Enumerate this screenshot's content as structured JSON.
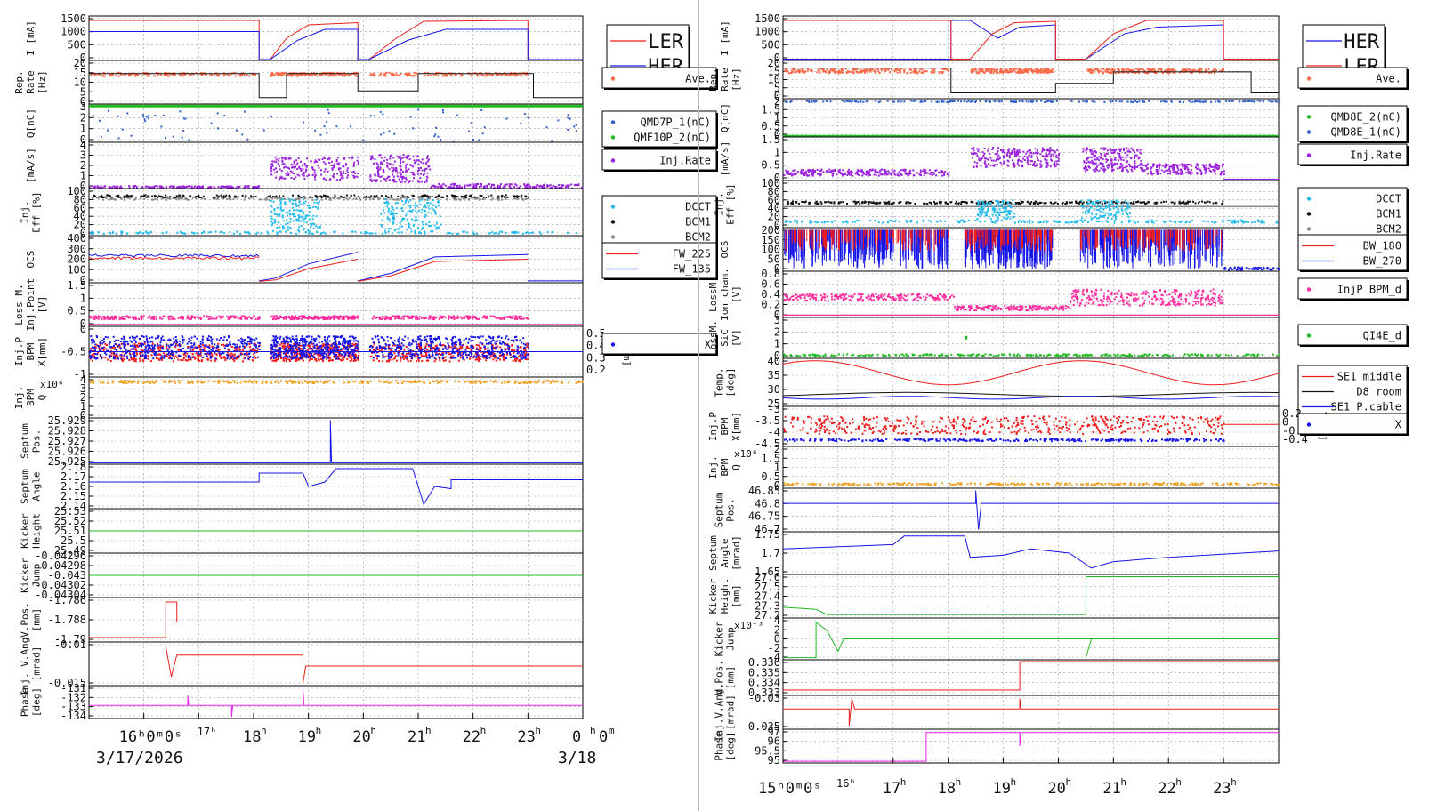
{
  "colors": {
    "red": "#ee1c1c",
    "blue": "#1515e8",
    "green": "#22bb22",
    "purple": "#9a22dd",
    "cyan": "#22bbee",
    "black": "#111111",
    "gray": "#8a8a8a",
    "pink": "#ff2d9e",
    "orange": "#f0a020",
    "magenta": "#ee22ee",
    "salmon": "#ff6a4a",
    "steelblue": "#3060cc"
  },
  "chart_data": [
    {
      "type": "line",
      "xrange_hours": [
        15.0,
        24.0
      ],
      "xticks": [
        {
          "h": 16,
          "label": "16ʰ0ᵐ0ˢ",
          "sup": "17ʰ",
          "combined": true
        },
        {
          "h": 17,
          "label": ""
        },
        {
          "h": 18,
          "label": "18",
          "sup": "h"
        },
        {
          "h": 19,
          "label": "19",
          "sup": "h"
        },
        {
          "h": 20,
          "label": "20",
          "sup": "h"
        },
        {
          "h": 21,
          "label": "21",
          "sup": "h"
        },
        {
          "h": 22,
          "label": "22",
          "sup": "h"
        },
        {
          "h": 23,
          "label": "23",
          "sup": "h"
        },
        {
          "h": 24,
          "label": "0",
          "sup": "h",
          "tail": "0",
          "tailsup": "m"
        }
      ],
      "date_left": "3/17/2026",
      "date_right": "3/18",
      "panels": [
        {
          "ylabel": [
            "I [mA]"
          ],
          "ticks": [
            "1500",
            "1000",
            "500",
            "0"
          ],
          "legend": [
            {
              "text": "LER",
              "color": "red",
              "style": "line"
            },
            {
              "text": "HER",
              "color": "blue",
              "style": "line"
            }
          ],
          "bigLegend": true
        },
        {
          "ylabel": [
            "Rep.",
            "Rate",
            "[Hz]"
          ],
          "ticks": [
            "20",
            "15",
            "10",
            "5",
            "0"
          ],
          "legend": [
            {
              "text": "Ave.",
              "color": "salmon",
              "style": "dot"
            }
          ]
        },
        {
          "ylabel": [
            "Q[nC]"
          ],
          "ticks": [
            "3",
            "2",
            "1",
            "0"
          ],
          "legend": [
            {
              "text": "QMD7P_1(nC)",
              "color": "steelblue",
              "style": "dot"
            },
            {
              "text": "QMF10P_2(nC)",
              "color": "green",
              "style": "dot"
            }
          ]
        },
        {
          "ylabel": [
            "[mA/s]"
          ],
          "ticks": [
            "4",
            "3",
            "2",
            "1",
            "0"
          ],
          "legend": [
            {
              "text": "Inj.Rate",
              "color": "purple",
              "style": "dot"
            }
          ]
        },
        {
          "ylabel": [
            "Inj.",
            "Eff [%]"
          ],
          "ticks": [
            "100",
            "80",
            "60",
            "40",
            "20",
            "0"
          ],
          "legend": [
            {
              "text": "DCCT",
              "color": "cyan",
              "style": "dot"
            },
            {
              "text": "BCM1",
              "color": "black",
              "style": "dot"
            },
            {
              "text": "BCM2",
              "color": "gray",
              "style": "dot"
            }
          ]
        },
        {
          "ylabel": [
            "OCS"
          ],
          "ticks": [
            "400",
            "300",
            "200",
            "100",
            "0"
          ],
          "legend": [
            {
              "text": "FW_225",
              "color": "red",
              "style": "line"
            },
            {
              "text": "FW_135",
              "color": "blue",
              "style": "line"
            }
          ]
        },
        {
          "ylabel": [
            "Loss M.",
            "Inj.Point",
            "[V]"
          ],
          "ticks": [
            "1.5",
            "1",
            "0.5",
            "0"
          ],
          "legend": []
        },
        {
          "ylabel": [
            "Inj.P",
            "BPM",
            "X[mm]"
          ],
          "ticks": [
            "0",
            "-0.5",
            "-1"
          ],
          "rticks": [
            "0.5",
            "0.4",
            "0.3",
            "0.2"
          ],
          "rlabel": "Y[mm]",
          "legend": [
            {
              "text": "X",
              "color": "blue",
              "style": "dot"
            }
          ]
        },
        {
          "ylabel": [
            "Inj.",
            "BPM",
            "Q"
          ],
          "ticks": [
            "4",
            "3",
            "2",
            "1",
            "0"
          ],
          "exp": "x10⁶",
          "legend": []
        },
        {
          "ylabel": [
            "Septum",
            "Pos."
          ],
          "ticks": [
            "25.929",
            "25.928",
            "25.927",
            "25.926",
            "25.925"
          ],
          "legend": []
        },
        {
          "ylabel": [
            "Septum",
            "Angle"
          ],
          "ticks": [
            "2.18",
            "2.17",
            "2.16",
            "2.15",
            "2.14"
          ],
          "legend": []
        },
        {
          "ylabel": [
            "Kicker",
            "Height"
          ],
          "ticks": [
            "25.53",
            "25.52",
            "25.51",
            "25.5",
            "25.49"
          ],
          "legend": []
        },
        {
          "ylabel": [
            "Kicker",
            "Jump"
          ],
          "ticks": [
            "-0.04296",
            "-0.04298",
            "-0.043",
            "-0.04302",
            "-0.04304"
          ],
          "legend": []
        },
        {
          "ylabel": [
            "V.Pos.",
            "[mm]"
          ],
          "ticks": [
            "-1.786",
            "-1.788",
            "-1.79"
          ],
          "legend": []
        },
        {
          "ylabel": [
            "Inj. V.Ang.",
            "[mrad]"
          ],
          "ticks": [
            "-0.01",
            "-0.015"
          ],
          "legend": []
        },
        {
          "ylabel": [
            "Phase",
            "[deg]"
          ],
          "ticks": [
            "-131",
            "-132",
            "-133",
            "-134"
          ],
          "legend": []
        }
      ]
    },
    {
      "type": "line",
      "xrange_hours": [
        15.0,
        24.0
      ],
      "xticks": [
        {
          "h": 15,
          "label": "15ʰ0ᵐ0ˢ",
          "sup": "16ʰ",
          "combined": true
        },
        {
          "h": 17,
          "label": "17",
          "sup": "h"
        },
        {
          "h": 18,
          "label": "18",
          "sup": "h"
        },
        {
          "h": 19,
          "label": "19",
          "sup": "h"
        },
        {
          "h": 20,
          "label": "20",
          "sup": "h"
        },
        {
          "h": 21,
          "label": "21",
          "sup": "h"
        },
        {
          "h": 22,
          "label": "22",
          "sup": "h"
        },
        {
          "h": 23,
          "label": "23",
          "sup": "h"
        }
      ],
      "panels": [
        {
          "ylabel": [
            "I [mA]"
          ],
          "ticks": [
            "1500",
            "1000",
            "500",
            "0"
          ],
          "legend": [
            {
              "text": "HER",
              "color": "blue",
              "style": "line"
            },
            {
              "text": "LER",
              "color": "red",
              "style": "line"
            }
          ],
          "bigLegend": true
        },
        {
          "ylabel": [
            "Rep.",
            "Rate",
            "[Hz]"
          ],
          "ticks": [
            "20",
            "15",
            "10",
            "5",
            "0"
          ],
          "legend": [
            {
              "text": "Ave.",
              "color": "salmon",
              "style": "dot"
            }
          ]
        },
        {
          "ylabel": [
            "Q[nC]"
          ],
          "ticks": [
            "2",
            "1.5",
            "1",
            "0.5",
            "0"
          ],
          "legend": [
            {
              "text": "QMD8E_2(nC)",
              "color": "green",
              "style": "dot"
            },
            {
              "text": "QMD8E_1(nC)",
              "color": "steelblue",
              "style": "dot"
            }
          ]
        },
        {
          "ylabel": [
            "[mA/s]"
          ],
          "ticks": [
            "1.5",
            "1",
            "0.5",
            "0"
          ],
          "legend": [
            {
              "text": "Inj.Rate",
              "color": "purple",
              "style": "dot"
            }
          ]
        },
        {
          "ylabel": [
            "Inj.",
            "Eff [%]"
          ],
          "ticks": [
            "100",
            "80",
            "60",
            "40",
            "20",
            "0"
          ],
          "legend": [
            {
              "text": "DCCT",
              "color": "cyan",
              "style": "dot"
            },
            {
              "text": "BCM1",
              "color": "black",
              "style": "dot"
            },
            {
              "text": "BCM2",
              "color": "gray",
              "style": "dot"
            }
          ]
        },
        {
          "ylabel": [
            "OCS"
          ],
          "ticks": [
            "200",
            "150",
            "100",
            "50",
            "0"
          ],
          "legend": [
            {
              "text": "BW_180",
              "color": "red",
              "style": "line"
            },
            {
              "text": "BW_270",
              "color": "blue",
              "style": "line"
            }
          ]
        },
        {
          "ylabel": [
            "LossM.",
            "Ion cham.",
            "[V]"
          ],
          "ticks": [
            "0.8",
            "0.6",
            "0.4",
            "0.2",
            "0"
          ],
          "legend": [
            {
              "text": "InjP BPM_d",
              "color": "pink",
              "style": "dot"
            }
          ]
        },
        {
          "ylabel": [
            "LossM.",
            "SiC",
            "[V]"
          ],
          "ticks": [
            "3",
            "2",
            "1",
            "0"
          ],
          "legend": [
            {
              "text": "QI4E_d",
              "color": "green",
              "style": "dot"
            }
          ]
        },
        {
          "ylabel": [
            "Temp.",
            "[deg]"
          ],
          "ticks": [
            "40",
            "35",
            "30",
            "25"
          ],
          "legend": [
            {
              "text": "SE1 middle",
              "color": "red",
              "style": "line"
            },
            {
              "text": "D8 room",
              "color": "black",
              "style": "line"
            },
            {
              "text": "SE1 P.cable",
              "color": "blue",
              "style": "line"
            }
          ]
        },
        {
          "ylabel": [
            "Inj.P",
            "BPM",
            "X[mm]"
          ],
          "ticks": [
            "-3",
            "-3.5",
            "-4",
            "-4.5"
          ],
          "rticks": [
            "0.2",
            "0",
            "-0.2",
            "-0.4"
          ],
          "rlabel": "Y[mm]",
          "legend": [
            {
              "text": "X",
              "color": "blue",
              "style": "dot"
            }
          ]
        },
        {
          "ylabel": [
            "Inj.",
            "BPM",
            "Q"
          ],
          "ticks": [
            "2",
            "1.5",
            "1",
            "0.5",
            "0"
          ],
          "exp": "x10⁶",
          "legend": []
        },
        {
          "ylabel": [
            "Septum",
            "Pos."
          ],
          "ticks": [
            "46.85",
            "46.8",
            "46.75",
            "46.7"
          ],
          "legend": []
        },
        {
          "ylabel": [
            "Septum",
            "Angle",
            "[mrad]"
          ],
          "ticks": [
            "1.75",
            "1.7",
            "1.65"
          ],
          "legend": []
        },
        {
          "ylabel": [
            "Kicker",
            "Height",
            "[mm]"
          ],
          "ticks": [
            "27.6",
            "27.5",
            "27.4",
            "27.3",
            "27.2"
          ],
          "legend": []
        },
        {
          "ylabel": [
            "Kicker",
            "Jump"
          ],
          "ticks": [
            "4",
            "2",
            "0",
            "-2",
            "-4"
          ],
          "exp": "x10⁻³",
          "legend": []
        },
        {
          "ylabel": [
            "V.Pos.",
            "[mm]"
          ],
          "ticks": [
            "0.336",
            "0.335",
            "0.334",
            "0.333"
          ],
          "legend": []
        },
        {
          "ylabel": [
            "Inj.V.Ang.",
            "[mrad]"
          ],
          "ticks": [
            "-0.03",
            "-0.035"
          ],
          "legend": []
        },
        {
          "ylabel": [
            "Phase",
            "[deg]"
          ],
          "ticks": [
            "97",
            "96",
            "95.5",
            "95"
          ],
          "legend": []
        }
      ]
    }
  ]
}
